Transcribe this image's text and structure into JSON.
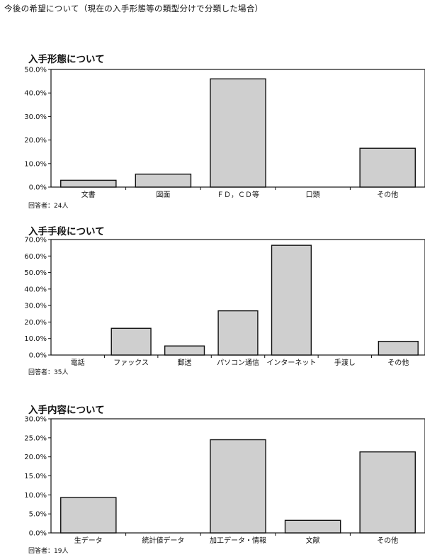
{
  "page_title": "今後の希望について（現在の入手形態等の類型分けで分類した場合）",
  "chart_data": [
    {
      "type": "bar",
      "title": "入手形態について",
      "respondents": "回答者：24人",
      "categories": [
        "文書",
        "図面",
        "ＦＤ，ＣＤ等",
        "口頭",
        "その他"
      ],
      "values": [
        2.9,
        5.5,
        46.0,
        0,
        16.5
      ],
      "ylim": [
        0,
        50
      ],
      "yticks": [
        "0.0%",
        "10.0%",
        "20.0%",
        "30.0%",
        "40.0%",
        "50.0%"
      ],
      "xlabel": "",
      "ylabel": "",
      "grid": false,
      "bar_color": "#cfcfcf"
    },
    {
      "type": "bar",
      "title": "入手手段について",
      "respondents": "回答者：35人",
      "categories": [
        "電話",
        "ファックス",
        "郵送",
        "パソコン通信",
        "インターネット",
        "手渡し",
        "その他"
      ],
      "values": [
        0,
        16.2,
        5.5,
        26.8,
        66.5,
        0,
        8.3
      ],
      "ylim": [
        0,
        70
      ],
      "yticks": [
        "0.0%",
        "10.0%",
        "20.0%",
        "30.0%",
        "40.0%",
        "50.0%",
        "60.0%",
        "70.0%"
      ],
      "xlabel": "",
      "ylabel": "",
      "grid": false,
      "bar_color": "#cfcfcf"
    },
    {
      "type": "bar",
      "title": "入手内容について",
      "respondents": "回答者：19人",
      "categories": [
        "生データ",
        "統計値データ",
        "加工データ・情報",
        "文献",
        "その他"
      ],
      "values": [
        9.3,
        0,
        24.5,
        3.3,
        21.3
      ],
      "ylim": [
        0,
        30
      ],
      "yticks": [
        "0.0%",
        "5.0%",
        "10.0%",
        "15.0%",
        "20.0%",
        "25.0%",
        "30.0%"
      ],
      "xlabel": "",
      "ylabel": "",
      "grid": false,
      "bar_color": "#cfcfcf"
    }
  ]
}
